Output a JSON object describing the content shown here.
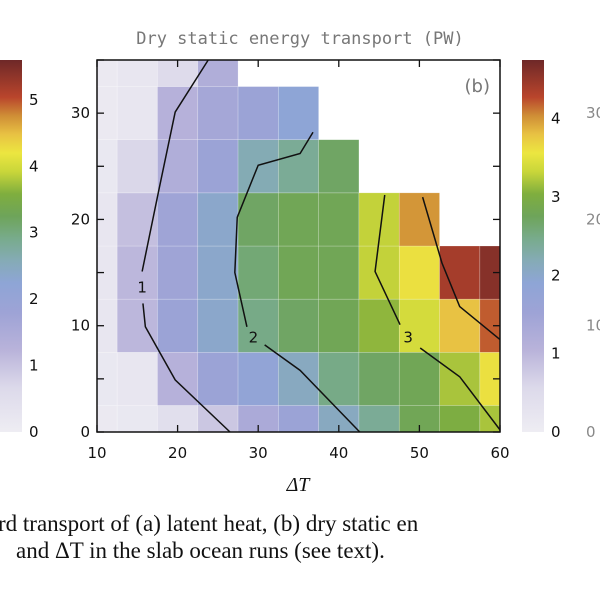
{
  "chart_data": {
    "type": "heatmap",
    "title": "Dry static energy transport (PW)",
    "panel_label": "(b)",
    "xlabel": "ΔT",
    "ylabel": "",
    "xlim": [
      10,
      60
    ],
    "ylim": [
      0,
      35
    ],
    "x_ticks": [
      "10",
      "20",
      "30",
      "40",
      "50",
      "60"
    ],
    "y_ticks": [
      "0",
      "10",
      "20",
      "30"
    ],
    "x": [
      10,
      15,
      20,
      25,
      30,
      35,
      40,
      45,
      50,
      55,
      60
    ],
    "y": [
      0,
      5,
      10,
      15,
      20,
      25,
      30,
      35
    ],
    "values": [
      [
        0.1,
        0.15,
        0.4,
        0.8,
        1.3,
        1.6,
        2.1,
        2.4,
        2.8,
        3.0,
        3.2
      ],
      [
        0.15,
        0.2,
        1.1,
        1.6,
        1.8,
        2.1,
        2.5,
        2.7,
        2.8,
        3.2,
        3.6
      ],
      [
        0.2,
        1.0,
        1.6,
        2.0,
        2.5,
        2.7,
        2.8,
        3.1,
        3.4,
        3.8,
        4.2
      ],
      [
        0.2,
        1.0,
        1.5,
        2.0,
        2.6,
        2.8,
        2.8,
        3.3,
        3.6,
        4.4,
        4.6
      ],
      [
        0.2,
        0.9,
        1.5,
        2.0,
        2.7,
        2.8,
        2.8,
        3.3,
        4.0,
        null,
        null
      ],
      [
        0.15,
        0.6,
        1.2,
        1.6,
        2.2,
        2.4,
        2.7,
        null,
        null,
        null,
        null
      ],
      [
        0.1,
        0.2,
        1.1,
        1.4,
        1.6,
        1.9,
        null,
        null,
        null,
        null,
        null
      ],
      [
        0.1,
        0.2,
        0.5,
        1.2,
        null,
        null,
        null,
        null,
        null,
        null,
        null
      ]
    ],
    "contours": [
      {
        "level": "1",
        "label_at": [
          15.6,
          13.6
        ],
        "segments": [
          [
            [
              23.8,
              35
            ],
            [
              19.7,
              30.1
            ],
            [
              17.6,
              22.5
            ],
            [
              15.6,
              15.1
            ]
          ],
          [
            [
              15.7,
              12.1
            ],
            [
              16,
              9.9
            ],
            [
              19.7,
              4.9
            ],
            [
              26.5,
              0
            ]
          ]
        ]
      },
      {
        "level": "2",
        "label_at": [
          29.4,
          8.9
        ],
        "segments": [
          [
            [
              36.8,
              28.2
            ],
            [
              35.2,
              26.2
            ],
            [
              30,
              25.1
            ],
            [
              27.4,
              20.2
            ],
            [
              27.1,
              15
            ],
            [
              28.6,
              9.9
            ]
          ],
          [
            [
              30.8,
              8.2
            ],
            [
              35.2,
              5.8
            ],
            [
              42.6,
              0
            ]
          ]
        ]
      },
      {
        "level": "3",
        "label_at": [
          48.6,
          8.9
        ],
        "segments": [
          [
            [
              45.7,
              22.3
            ],
            [
              44.5,
              15.1
            ],
            [
              47.6,
              10.1
            ]
          ],
          [
            [
              50.1,
              7.9
            ],
            [
              55,
              5.2
            ],
            [
              60,
              0.2
            ]
          ]
        ]
      },
      {
        "level": "4",
        "label_at": null,
        "segments": [
          [
            [
              50.4,
              22.1
            ],
            [
              52.8,
              15.9
            ],
            [
              55,
              11.8
            ],
            [
              60,
              8.7
            ]
          ]
        ]
      }
    ],
    "colorbar_b": {
      "range": [
        0,
        4.75
      ],
      "ticks": [
        "0",
        "1",
        "2",
        "3",
        "4"
      ]
    },
    "colorbar_a": {
      "range": [
        0,
        5.6
      ],
      "ticks": [
        "0",
        "1",
        "2",
        "3",
        "4",
        "5"
      ]
    },
    "right_partial_ticks": [
      "30",
      "20",
      "10",
      "0"
    ],
    "colormap": [
      [
        0.0,
        "#eeedf3"
      ],
      [
        0.12,
        "#dcd9ea"
      ],
      [
        0.22,
        "#b9b3da"
      ],
      [
        0.32,
        "#9ea3d6"
      ],
      [
        0.4,
        "#8ea5d6"
      ],
      [
        0.46,
        "#85abb6"
      ],
      [
        0.52,
        "#78ab8c"
      ],
      [
        0.58,
        "#6ea45a"
      ],
      [
        0.64,
        "#7fae3e"
      ],
      [
        0.7,
        "#c9d63a"
      ],
      [
        0.75,
        "#ece640"
      ],
      [
        0.8,
        "#e8c243"
      ],
      [
        0.85,
        "#cf8e36"
      ],
      [
        0.9,
        "#b9452c"
      ],
      [
        1.0,
        "#6e2828"
      ]
    ]
  },
  "caption": {
    "line1": "rd transport of (a) latent heat, (b) dry static en",
    "line2": "and ΔT in the slab ocean runs (see text)."
  }
}
